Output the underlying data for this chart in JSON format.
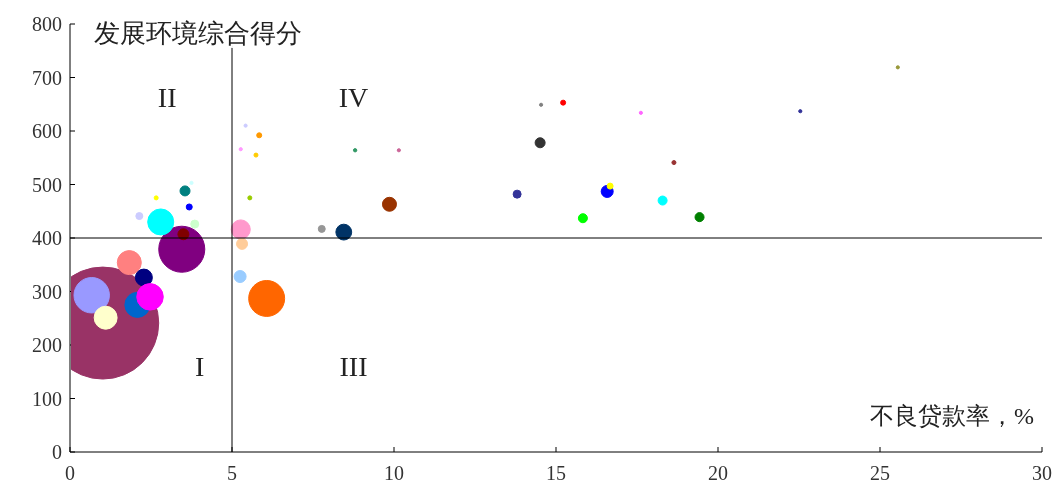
{
  "chart_data": {
    "type": "bubble",
    "xlabel": "不良贷款率，%",
    "ylabel": "发展环境综合得分",
    "xlim": [
      0,
      30
    ],
    "ylim": [
      0,
      800
    ],
    "xticks": [
      0,
      5,
      10,
      15,
      20,
      25,
      30
    ],
    "yticks": [
      0,
      100,
      200,
      300,
      400,
      500,
      600,
      700,
      800
    ],
    "grid": false,
    "ref_lines": [
      {
        "axis": "x",
        "value": 5,
        "color": "#000000"
      },
      {
        "axis": "y",
        "value": 400,
        "color": "#000000"
      }
    ],
    "annotations": [
      "I",
      "II",
      "III",
      "IV"
    ],
    "series": [
      {
        "x": [
          1.01,
          0.67,
          1.1,
          1.83,
          2.28,
          2.08,
          2.47,
          3.45,
          3.5,
          2.8,
          2.14,
          2.66,
          3.55,
          3.68,
          3.85,
          3.75,
          5.27,
          5.31,
          5.25,
          6.07,
          5.55,
          5.42,
          5.84,
          5.27,
          5.74,
          7.77,
          8.45,
          8.8,
          10.15,
          9.86,
          14.54,
          15.22,
          17.62,
          14.51,
          18.64,
          13.8,
          16.58,
          16.67,
          18.29,
          15.83,
          19.43,
          22.54,
          25.55
        ],
        "values": [
          241,
          293,
          251,
          354,
          326,
          275,
          290,
          379,
          407,
          430,
          441,
          475,
          488,
          458,
          426,
          503,
          416,
          389,
          328,
          287,
          475,
          610,
          592,
          566,
          555,
          417,
          411,
          564,
          564,
          463,
          649,
          653,
          634,
          578,
          541,
          482,
          487,
          497,
          470,
          437,
          439,
          637,
          719
        ],
        "sizes": [
          1,
          0.1,
          0.042,
          0.046,
          0.023,
          0.05,
          0.056,
          0.169,
          0.0096,
          0.054,
          0.0039,
          0.0013,
          0.008,
          0.0029,
          0.0051,
          0.0008,
          0.029,
          0.0096,
          0.0115,
          0.103,
          0.0013,
          0.0008,
          0.002,
          0.0008,
          0.0013,
          0.0039,
          0.02,
          0.0009,
          0.0008,
          0.0156,
          0.0008,
          0.002,
          0.0008,
          0.008,
          0.0013,
          0.0051,
          0.0115,
          0.0029,
          0.0065,
          0.0065,
          0.0065,
          0.0008,
          0.0008
        ],
        "colors": [
          "#993366",
          "#9999ff",
          "#ffffcc",
          "#ff8080",
          "#000080",
          "#0066cc",
          "#ff00ff",
          "#800080",
          "#800000",
          "#00ffff",
          "#ccccff",
          "#ffff00",
          "#008080",
          "#0000ff",
          "#ccffcc",
          "#ccffff",
          "#ff99cc",
          "#ffcc99",
          "#99ccff",
          "#ff6600",
          "#99cc00",
          "#ccccff",
          "#ff9900",
          "#ff99ff",
          "#ffcc00",
          "#969696",
          "#003366",
          "#339966",
          "#cc6699",
          "#993300",
          "#808080",
          "#ff0000",
          "#ff66ff",
          "#333333",
          "#993333",
          "#333399",
          "#0000ff",
          "#ffff00",
          "#00ffff",
          "#00ff00",
          "#008000",
          "#333399",
          "#99993a"
        ]
      }
    ]
  }
}
